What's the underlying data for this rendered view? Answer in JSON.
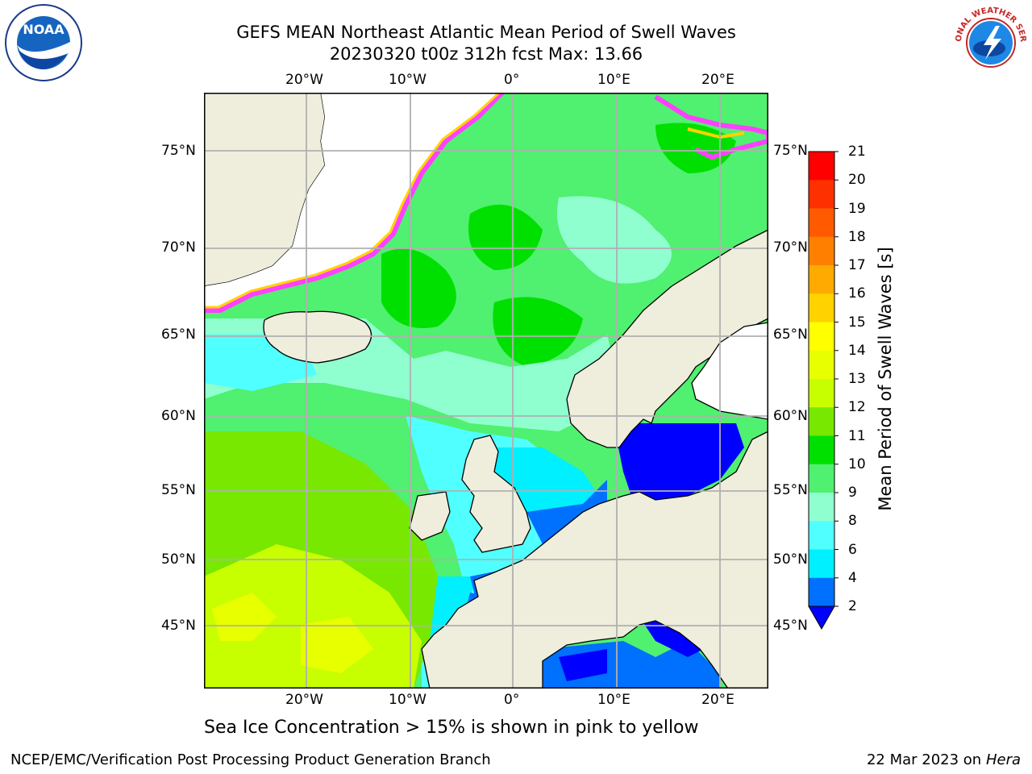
{
  "title": {
    "line1": "GEFS MEAN Northeast Atlantic Mean Period of Swell Waves",
    "line2": "20230320 t00z 312h fcst   Max: 13.66"
  },
  "axes": {
    "lon_labels": [
      "20°W",
      "10°W",
      "0°",
      "10°E",
      "20°E"
    ],
    "lat_labels": [
      "75°N",
      "70°N",
      "65°N",
      "60°N",
      "55°N",
      "50°N",
      "45°N"
    ]
  },
  "colorbar": {
    "label": "Mean Period of Swell Waves [s]",
    "ticks": [
      "21",
      "20",
      "19",
      "18",
      "17",
      "16",
      "15",
      "14",
      "13",
      "12",
      "11",
      "10",
      "9",
      "8",
      "6",
      "4",
      "2"
    ],
    "colors": [
      "#ff0000",
      "#ff3000",
      "#ff5a00",
      "#ff8000",
      "#ffaa00",
      "#ffd200",
      "#ffff00",
      "#e8ff00",
      "#c8ff00",
      "#78e800",
      "#00e000",
      "#50f070",
      "#90ffd0",
      "#50ffff",
      "#00f0ff",
      "#0070ff",
      "#0000ff"
    ],
    "extend_min": true
  },
  "note": "Sea Ice Concentration > 15% is shown in pink to yellow",
  "footer": {
    "left": "NCEP/EMC/Verification Post Processing Product Generation Branch",
    "date": "22 Mar 2023 on",
    "machine": "Hera"
  },
  "logos": {
    "noaa": "NOAA",
    "nws": "NATIONAL WEATHER SERVICE"
  }
}
